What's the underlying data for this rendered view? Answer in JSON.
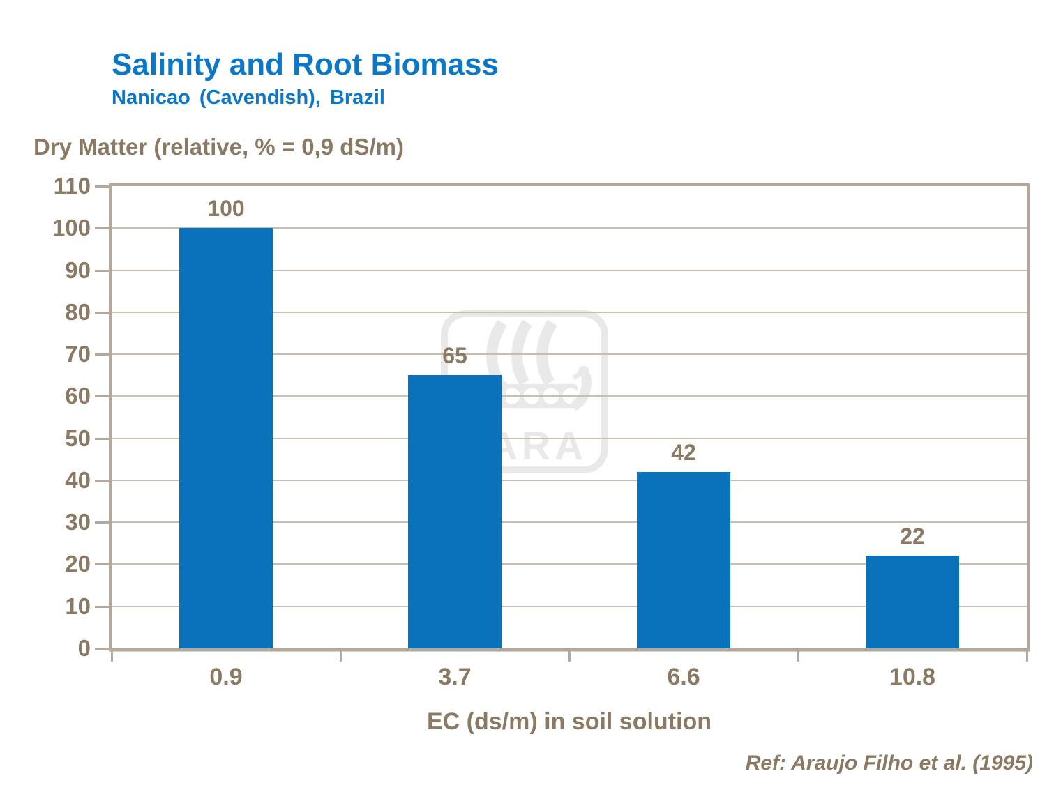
{
  "chart_data": {
    "type": "bar",
    "title": "Salinity and Root Biomass",
    "subtitle": "Nanicao (Cavendish), Brazil",
    "ylabel": "Dry Matter (relative, % = 0,9 dS/m)",
    "xlabel": "EC (ds/m) in soil solution",
    "categories": [
      "0.9",
      "3.7",
      "6.6",
      "10.8"
    ],
    "values": [
      100,
      65,
      42,
      22
    ],
    "ylim": [
      0,
      110
    ],
    "ytick_step": 10,
    "grid": true,
    "legend": "none",
    "reference": "Ref: Araujo Filho et al. (1995)",
    "watermark": "YARA",
    "colors": {
      "bar": "#0a72bb",
      "title": "#0b77c8",
      "axis_text": "#8a7a63",
      "gridline": "#c8beb0",
      "border": "#b3a899",
      "watermark": "#e9e9e9"
    }
  }
}
